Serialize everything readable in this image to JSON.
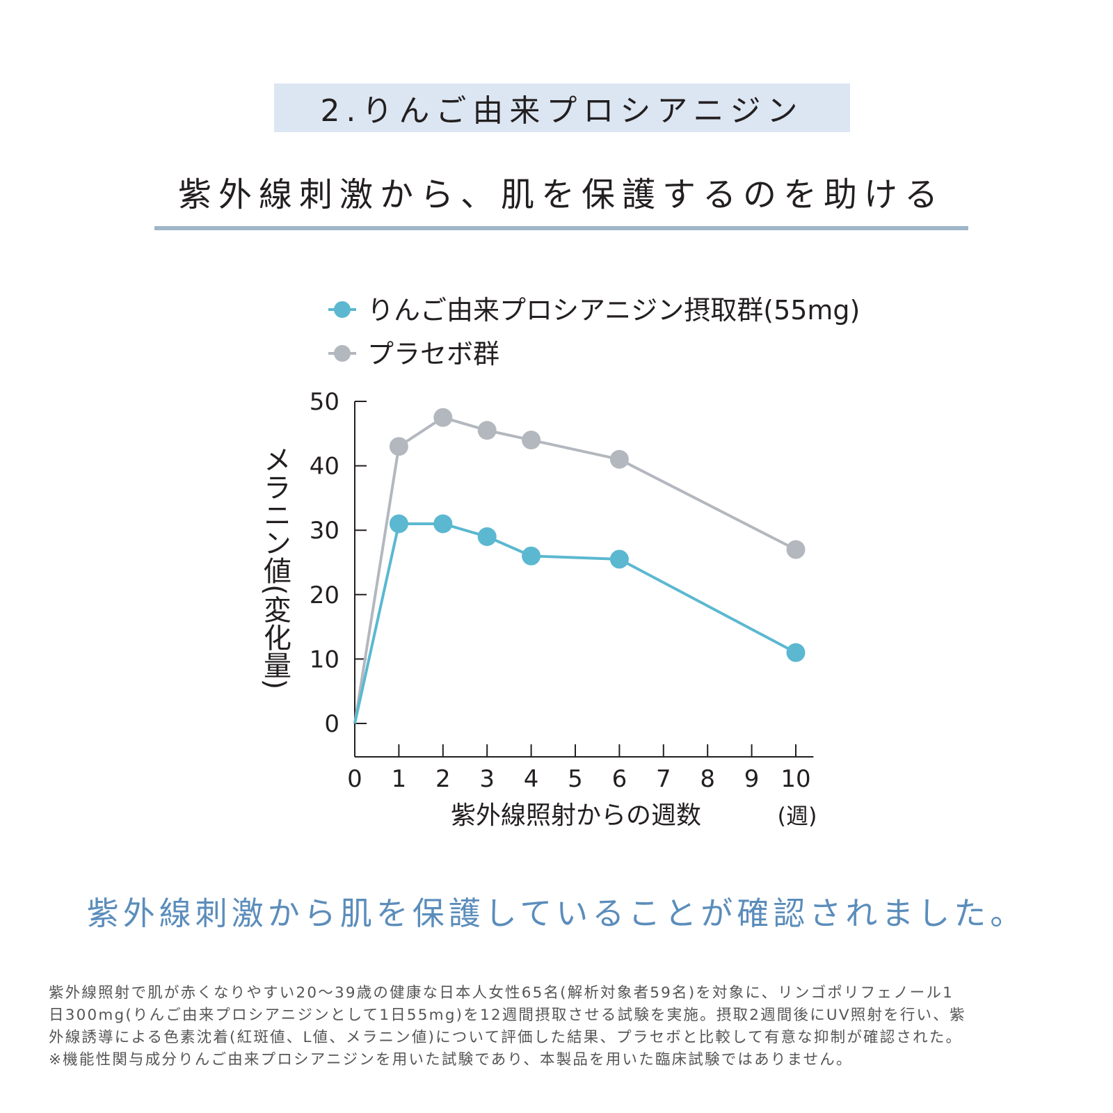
{
  "header": {
    "section_label": "2.りんご由来プロシアニジン",
    "headline": "紫外線刺激から、肌を保護するのを助ける"
  },
  "chart_data": {
    "type": "line",
    "title": "",
    "xlabel": "紫外線照射からの週数",
    "xunit": "(週)",
    "ylabel": "メラニン値(変化量)",
    "xlim": [
      0,
      10.4
    ],
    "ylim": [
      0,
      50
    ],
    "xticks": [
      0,
      1,
      2,
      3,
      4,
      5,
      6,
      7,
      8,
      9,
      10
    ],
    "yticks": [
      0,
      10,
      20,
      30,
      40,
      50
    ],
    "legend_position": "top-left",
    "grid": false,
    "series": [
      {
        "name": "りんご由来プロシアニジン摂取群(55mg)",
        "color": "#5bb8d0",
        "x": [
          0,
          1,
          2,
          3,
          4,
          6,
          10
        ],
        "y": [
          0,
          31,
          31,
          29,
          26,
          25.5,
          11
        ]
      },
      {
        "name": "プラセボ群",
        "color": "#b3b8be",
        "x": [
          0,
          1,
          2,
          3,
          4,
          6,
          10
        ],
        "y": [
          0,
          43,
          47.5,
          45.5,
          44,
          41,
          27
        ]
      }
    ]
  },
  "conclusion": "紫外線刺激から肌を保護していることが確認されました。",
  "footnote": [
    "紫外線照射で肌が赤くなりやすい20〜39歳の健康な日本人女性65名(解析対象者59名)を対象に、リンゴポリフェノール1",
    "日300mg(りんご由来プロシアニジンとして1日55mg)を12週間摂取させる試験を実施。摂取2週間後にUV照射を行い、紫",
    "外線誘導による色素沈着(紅斑値、L値、メラニン値)について評価した結果、プラセボと比較して有意な抑制が確認された。",
    "※機能性関与成分りんご由来プロシアニジンを用いた試験であり、本製品を用いた臨床試験ではありません。"
  ]
}
